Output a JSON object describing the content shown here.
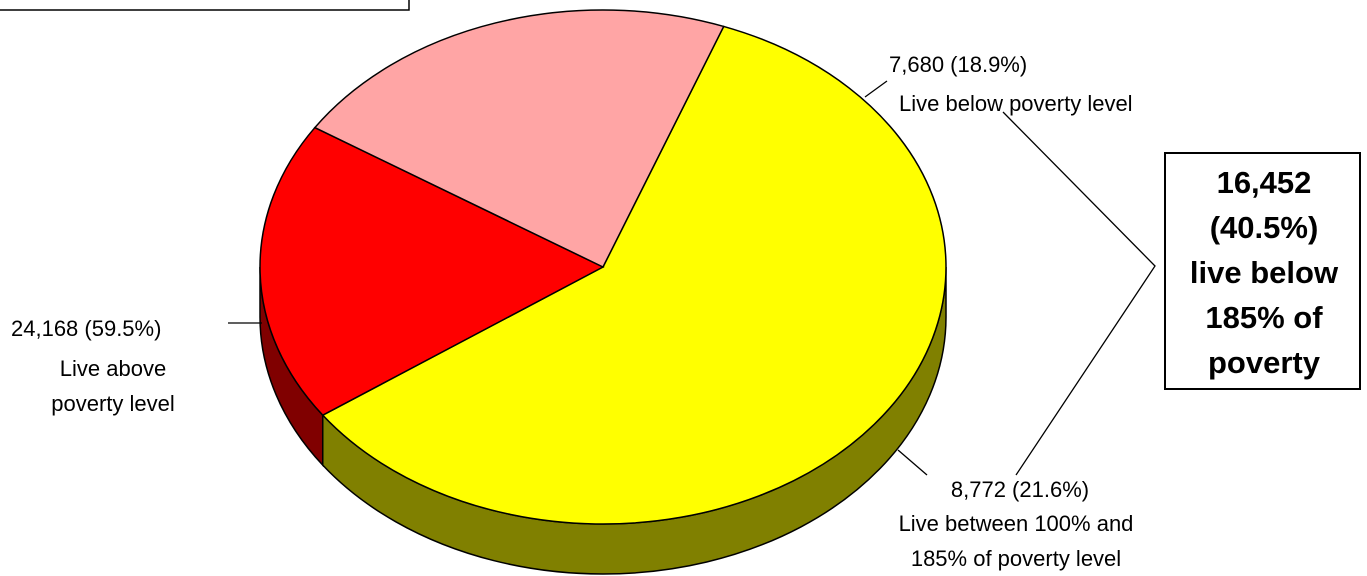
{
  "chart_data": {
    "type": "pie",
    "three_d": true,
    "slices": [
      {
        "value": 24168,
        "percent": 59.5,
        "value_label": "24,168  (59.5%)",
        "desc_lines": [
          "Live above",
          "poverty level"
        ],
        "color": "#FFFF00",
        "side_color": "#808000"
      },
      {
        "value": 7680,
        "percent": 18.9,
        "value_label": "7,680  (18.9%)",
        "desc_lines": [
          "Live below poverty level"
        ],
        "color": "#FF0000",
        "side_color": "#800000"
      },
      {
        "value": 8772,
        "percent": 21.6,
        "value_label": "8,772  (21.6%)",
        "desc_lines": [
          "Live between 100% and",
          "185% of  poverty level"
        ],
        "color": "#FFA5A5",
        "side_color": "#805050"
      }
    ],
    "callout": {
      "lines": [
        "16,452",
        "(40.5%)",
        "live below",
        "185% of",
        "poverty"
      ],
      "value": 16452,
      "percent": 40.5
    }
  }
}
